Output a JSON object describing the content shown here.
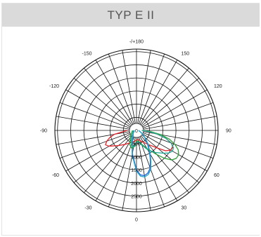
{
  "header": {
    "title": "TYP E II"
  },
  "chart_data": {
    "type": "polar",
    "title": "TYP E II",
    "angle_labels": [
      {
        "angle": 180,
        "label": "-/+180"
      },
      {
        "angle": 150,
        "label": "150"
      },
      {
        "angle": 120,
        "label": "120"
      },
      {
        "angle": 90,
        "label": "90"
      },
      {
        "angle": 60,
        "label": "60"
      },
      {
        "angle": 30,
        "label": "30"
      },
      {
        "angle": 0,
        "label": "0"
      },
      {
        "angle": -30,
        "label": "-30"
      },
      {
        "angle": -60,
        "label": "-60"
      },
      {
        "angle": -90,
        "label": "-90"
      },
      {
        "angle": -120,
        "label": "-120"
      },
      {
        "angle": -150,
        "label": "-150"
      }
    ],
    "angle_step": 10,
    "radial_ticks": [
      {
        "value": 0,
        "label": "0"
      },
      {
        "value": 500,
        "label": "500"
      },
      {
        "value": 1000,
        "label": "1000"
      },
      {
        "value": 1500,
        "label": "1500"
      },
      {
        "value": 2000,
        "label": "2000"
      },
      {
        "value": 2500,
        "label": "2500"
      }
    ],
    "radial_max": 3100,
    "grid": true,
    "series": [
      {
        "color": "#e2232a",
        "points": [
          [
            -90,
            350
          ],
          [
            -80,
            850
          ],
          [
            -75,
            1050
          ],
          [
            -70,
            1200
          ],
          [
            -65,
            1300
          ],
          [
            -60,
            1200
          ],
          [
            -50,
            900
          ],
          [
            -40,
            700
          ],
          [
            -30,
            560
          ],
          [
            -20,
            480
          ],
          [
            -10,
            420
          ],
          [
            0,
            370
          ],
          [
            10,
            350
          ],
          [
            20,
            420
          ],
          [
            30,
            520
          ],
          [
            40,
            700
          ],
          [
            50,
            1050
          ],
          [
            55,
            1350
          ],
          [
            60,
            1500
          ],
          [
            65,
            1520
          ],
          [
            70,
            1420
          ],
          [
            75,
            1150
          ],
          [
            80,
            780
          ],
          [
            85,
            450
          ],
          [
            90,
            220
          ]
        ]
      },
      {
        "color": "#1f5fd6",
        "points": [
          [
            -90,
            80
          ],
          [
            -45,
            180
          ],
          [
            -30,
            260
          ],
          [
            -20,
            450
          ],
          [
            -10,
            900
          ],
          [
            0,
            1500
          ],
          [
            5,
            1700
          ],
          [
            10,
            1750
          ],
          [
            15,
            1680
          ],
          [
            20,
            1520
          ],
          [
            25,
            1250
          ],
          [
            30,
            1000
          ],
          [
            40,
            650
          ],
          [
            50,
            400
          ],
          [
            60,
            250
          ],
          [
            70,
            150
          ],
          [
            90,
            80
          ]
        ]
      },
      {
        "color": "#1fa8c8",
        "points": [
          [
            -90,
            80
          ],
          [
            -45,
            200
          ],
          [
            -30,
            300
          ],
          [
            -20,
            480
          ],
          [
            -10,
            950
          ],
          [
            0,
            1550
          ],
          [
            5,
            1750
          ],
          [
            10,
            1800
          ],
          [
            15,
            1740
          ],
          [
            20,
            1580
          ],
          [
            25,
            1300
          ],
          [
            30,
            1050
          ],
          [
            40,
            700
          ],
          [
            50,
            420
          ],
          [
            60,
            260
          ],
          [
            70,
            160
          ],
          [
            90,
            80
          ]
        ]
      },
      {
        "color": "#2d9f3a",
        "points": [
          [
            -90,
            150
          ],
          [
            -50,
            280
          ],
          [
            -35,
            420
          ],
          [
            -25,
            600
          ],
          [
            -15,
            700
          ],
          [
            -5,
            600
          ],
          [
            0,
            400
          ],
          [
            10,
            420
          ],
          [
            20,
            550
          ],
          [
            30,
            800
          ],
          [
            40,
            1200
          ],
          [
            45,
            1500
          ],
          [
            50,
            1750
          ],
          [
            55,
            1850
          ],
          [
            60,
            1850
          ],
          [
            65,
            1750
          ],
          [
            70,
            1550
          ],
          [
            75,
            1300
          ],
          [
            80,
            950
          ],
          [
            85,
            550
          ],
          [
            90,
            250
          ]
        ]
      },
      {
        "color": "#1fa89a",
        "points": [
          [
            -90,
            120
          ],
          [
            -45,
            220
          ],
          [
            -30,
            400
          ],
          [
            -20,
            550
          ],
          [
            -10,
            650
          ],
          [
            0,
            450
          ],
          [
            10,
            450
          ],
          [
            20,
            600
          ],
          [
            30,
            850
          ],
          [
            40,
            1100
          ],
          [
            50,
            1350
          ],
          [
            55,
            1500
          ],
          [
            60,
            1580
          ],
          [
            65,
            1550
          ],
          [
            70,
            1400
          ],
          [
            75,
            1150
          ],
          [
            80,
            800
          ],
          [
            85,
            450
          ],
          [
            90,
            200
          ]
        ]
      }
    ]
  }
}
